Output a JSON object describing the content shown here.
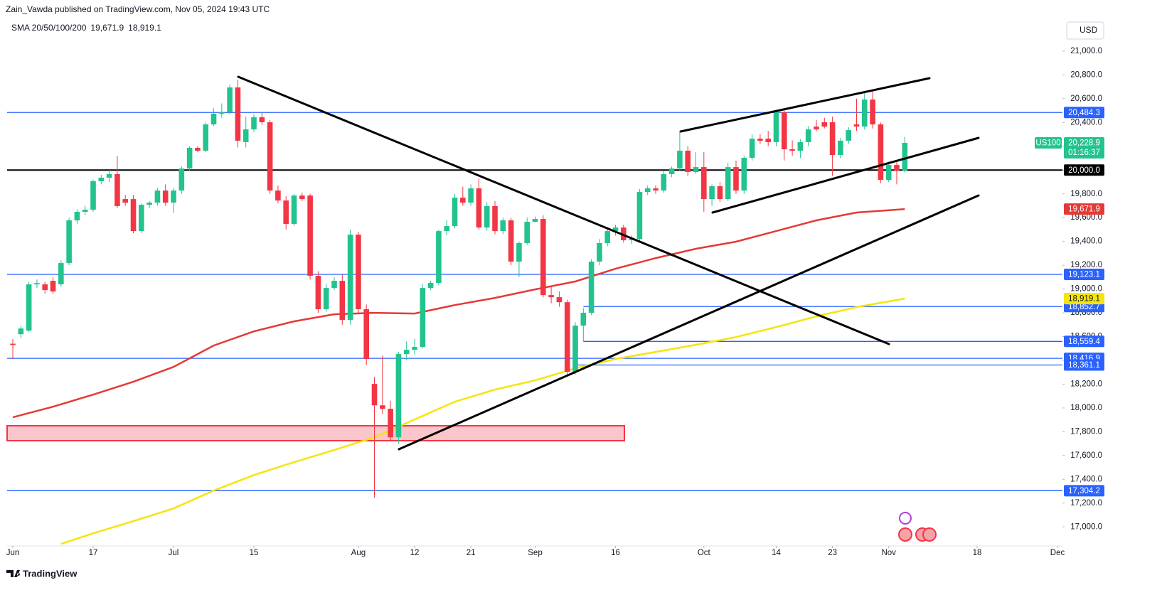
{
  "header": {
    "publisher": "Zain_Vawda published on TradingView.com, Nov 05, 2024 19:43 UTC",
    "indicator": "SMA 20/50/100/200",
    "currency": "USD",
    "brand": "TradingView"
  },
  "chart_data": {
    "type": "candlestick",
    "symbol": "US100",
    "countdown": "01:16:37",
    "last_label": "20,228.9",
    "up_color": "#22c38e",
    "down_color": "#f23645",
    "xlim": [
      -0.71,
      130.62
    ],
    "xticks": [
      {
        "value": 0,
        "label": "Jun"
      },
      {
        "value": 10,
        "label": "17"
      },
      {
        "value": 20,
        "label": "Jul"
      },
      {
        "value": 30,
        "label": "15"
      },
      {
        "value": 43,
        "label": "Aug"
      },
      {
        "value": 50,
        "label": "12"
      },
      {
        "value": 57,
        "label": "21"
      },
      {
        "value": 65,
        "label": "Sep"
      },
      {
        "value": 75,
        "label": "16"
      },
      {
        "value": 86,
        "label": "Oct"
      },
      {
        "value": 95,
        "label": "14"
      },
      {
        "value": 102,
        "label": "23"
      },
      {
        "value": 109,
        "label": "Nov"
      },
      {
        "value": 120,
        "label": "18"
      },
      {
        "value": 130,
        "label": "Dec"
      }
    ],
    "ylim": [
      16840,
      21430
    ],
    "yticks": [
      {
        "value": 17000,
        "label": "17,000.0"
      },
      {
        "value": 17200,
        "label": "17,200.0"
      },
      {
        "value": 17400,
        "label": "17,400.0"
      },
      {
        "value": 17600,
        "label": "17,600.0"
      },
      {
        "value": 17800,
        "label": "17,800.0"
      },
      {
        "value": 18000,
        "label": "18,000.0"
      },
      {
        "value": 18200,
        "label": "18,200.0"
      },
      {
        "value": 18400,
        "label": "18,400.0"
      },
      {
        "value": 18600,
        "label": "18,600.0"
      },
      {
        "value": 18800,
        "label": "18,800.0"
      },
      {
        "value": 19000,
        "label": "19,000.0"
      },
      {
        "value": 19200,
        "label": "19,200.0"
      },
      {
        "value": 19400,
        "label": "19,400.0"
      },
      {
        "value": 19600,
        "label": "19,600.0"
      },
      {
        "value": 19800,
        "label": "19,800.0"
      },
      {
        "value": 20000,
        "label": "20,000.0"
      },
      {
        "value": 20200,
        "label": "20,200.0"
      },
      {
        "value": 20400,
        "label": "20,400.0"
      },
      {
        "value": 20600,
        "label": "20,600.0"
      },
      {
        "value": 20800,
        "label": "20,800.0"
      },
      {
        "value": 21000,
        "label": "21,000.0"
      }
    ],
    "open": [
      18540,
      18620,
      18650,
      19039,
      19039,
      19069,
      19039,
      19218,
      19577,
      19649,
      19667,
      19906,
      19936,
      19966,
      19756,
      19756,
      19487,
      19708,
      19726,
      19828,
      19726,
      19828,
      20013,
      20187,
      20163,
      20384,
      20474,
      20486,
      20695,
      20235,
      20342,
      20444,
      20402,
      19828,
      19744,
      19547,
      19786,
      19786,
      19111,
      18830,
      19009,
      19069,
      18740,
      19457,
      18830,
      18202,
      18022,
      17993,
      17753,
      18453,
      18489,
      18513,
      19009,
      19051,
      19487,
      19529,
      19768,
      19726,
      19846,
      19517,
      19697,
      19487,
      19577,
      19230,
      19386,
      19565,
      19589,
      18949,
      18931,
      18889,
      18303,
      18692,
      18800,
      19230,
      19386,
      19487,
      19517,
      19410,
      19420,
      19816,
      19846,
      19828,
      19966,
      20013,
      20163,
      19984,
      20025,
      19756,
      19864,
      19756,
      20025,
      19828,
      20103,
      20264,
      20264,
      20235,
      20486,
      20175,
      20163,
      20235,
      20366,
      20402,
      20402,
      20127,
      20247,
      20384,
      20366,
      20593,
      20384,
      19918,
      20043,
      19995
    ],
    "high": [
      18580,
      18690,
      19060,
      19080,
      19060,
      19100,
      19240,
      19600,
      19670,
      19700,
      19920,
      19960,
      20000,
      20120,
      19790,
      19790,
      19720,
      19740,
      19850,
      19880,
      19850,
      20030,
      20200,
      20200,
      20400,
      20520,
      20560,
      20720,
      20761,
      20450,
      20470,
      20480,
      20420,
      19870,
      19780,
      19800,
      19810,
      19800,
      19150,
      19040,
      19100,
      19120,
      19500,
      19480,
      18870,
      18260,
      18440,
      18060,
      18470,
      18560,
      18580,
      19040,
      19070,
      19500,
      19580,
      19800,
      19860,
      19880,
      19930,
      19730,
      19740,
      19600,
      19600,
      19400,
      19600,
      19610,
      19620,
      19020,
      18980,
      18910,
      18720,
      18840,
      19250,
      19420,
      19520,
      19540,
      19540,
      19450,
      19840,
      19870,
      19870,
      19990,
      20030,
      20318,
      20200,
      20150,
      20150,
      19880,
      19900,
      20060,
      20080,
      20120,
      20300,
      20300,
      20330,
      20500,
      20500,
      20250,
      20260,
      20370,
      20420,
      20440,
      20450,
      20270,
      20360,
      20600,
      20660,
      20660,
      20400,
      20070,
      20070,
      20280
    ],
    "low": [
      18411,
      18590,
      18640,
      19010,
      18960,
      18960,
      19020,
      19200,
      19550,
      19620,
      19650,
      19880,
      19900,
      19680,
      19700,
      19470,
      19470,
      19680,
      19700,
      19700,
      19640,
      19800,
      19990,
      20150,
      20150,
      20370,
      20440,
      20470,
      20190,
      20190,
      20320,
      20380,
      19800,
      19720,
      19500,
      19530,
      19740,
      19080,
      18800,
      18810,
      18990,
      18700,
      18700,
      18800,
      18360,
      17245,
      17950,
      17720,
      17700,
      18400,
      18450,
      18500,
      18990,
      19030,
      19450,
      19510,
      19700,
      19700,
      19500,
      19490,
      19460,
      19460,
      19200,
      19100,
      19370,
      19560,
      18930,
      18880,
      18850,
      18280,
      18280,
      18560,
      18780,
      19200,
      19360,
      19450,
      19390,
      19380,
      19400,
      19790,
      19800,
      19810,
      19940,
      19990,
      19950,
      19970,
      19650,
      19700,
      19730,
      19740,
      19800,
      19800,
      20080,
      20220,
      20200,
      20200,
      20080,
      20120,
      20100,
      20200,
      20330,
      20350,
      19950,
      20100,
      20220,
      20330,
      20340,
      20350,
      19890,
      19900,
      19880,
      19980
    ],
    "close": [
      18530,
      18668,
      19039,
      19050,
      18991,
      18979,
      19218,
      19577,
      19649,
      19667,
      19906,
      19936,
      19966,
      19697,
      19726,
      19487,
      19708,
      19726,
      19828,
      19726,
      19828,
      20013,
      20187,
      20163,
      20384,
      20474,
      20486,
      20695,
      20247,
      20342,
      20444,
      20402,
      19828,
      19744,
      19547,
      19786,
      19756,
      19111,
      18830,
      19009,
      19069,
      18740,
      19457,
      18830,
      18411,
      18022,
      17993,
      17753,
      18453,
      18489,
      18513,
      19009,
      19051,
      19487,
      19529,
      19768,
      19726,
      19846,
      19517,
      19697,
      19487,
      19577,
      19230,
      19386,
      19565,
      19589,
      18949,
      18931,
      18889,
      18303,
      18692,
      18800,
      19230,
      19386,
      19487,
      19517,
      19410,
      19420,
      19816,
      19846,
      19828,
      19966,
      20013,
      20163,
      19984,
      20025,
      19756,
      19864,
      19756,
      20025,
      19828,
      20103,
      20264,
      20247,
      20235,
      20486,
      20175,
      20163,
      20235,
      20342,
      20342,
      20366,
      20127,
      20247,
      20336,
      20366,
      20593,
      20384,
      19918,
      20043,
      19995,
      20228.9
    ],
    "overlays": [
      {
        "color": "#e53935",
        "label": "19,671.9",
        "x": [
          0,
          5,
          10,
          15,
          20,
          25,
          30,
          35,
          40,
          45,
          50,
          55,
          60,
          65,
          70,
          75,
          80,
          85,
          90,
          95,
          100,
          105,
          111
        ],
        "values": [
          17921,
          18010,
          18112,
          18220,
          18345,
          18525,
          18644,
          18728,
          18788,
          18800,
          18794,
          18865,
          18925,
          18997,
          19063,
          19170,
          19260,
          19338,
          19398,
          19487,
          19577,
          19643,
          19671.9
        ]
      },
      {
        "color": "#f5e50a",
        "label": "18,919.1",
        "x": [
          6,
          10,
          15,
          20,
          25,
          30,
          35,
          40,
          45,
          50,
          55,
          60,
          65,
          70,
          75,
          80,
          85,
          90,
          95,
          100,
          105,
          111
        ],
        "values": [
          16857,
          16946,
          17048,
          17155,
          17305,
          17436,
          17544,
          17646,
          17753,
          17903,
          18052,
          18154,
          18232,
          18333,
          18411,
          18471,
          18531,
          18596,
          18680,
          18770,
          18848,
          18919.1
        ]
      }
    ],
    "levels": [
      {
        "value": 20484.3,
        "label": "20,484.3",
        "color": "#2962ff"
      },
      {
        "value": 20000,
        "label": "20,000.0",
        "color": "#000000"
      },
      {
        "value": 19123.1,
        "label": "19,123.1",
        "color": "#2962ff"
      },
      {
        "value": 18852.7,
        "label": "18,852.7",
        "color": "#2962ff",
        "start": 71
      },
      {
        "value": 18559.4,
        "label": "18,559.4",
        "color": "#2962ff",
        "start": 71
      },
      {
        "value": 18416.9,
        "label": "18,416.9",
        "color": "#2962ff"
      },
      {
        "value": 18361.1,
        "label": "18,361.1",
        "color": "#2962ff",
        "start": 70
      },
      {
        "value": 17304.2,
        "label": "17,304.2",
        "color": "#2962ff"
      }
    ]
  }
}
